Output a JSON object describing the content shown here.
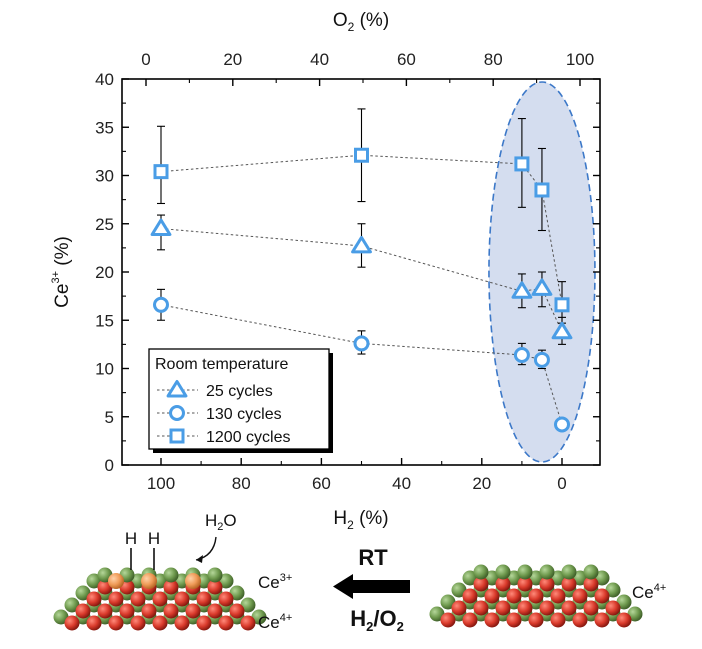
{
  "chart_data": {
    "type": "scatter",
    "x_bottom": {
      "label": "H",
      "label_sub": "2",
      "label_unit": " (%)",
      "range": [
        0,
        100
      ],
      "reversed": true,
      "ticks": [
        100,
        80,
        60,
        40,
        20,
        0
      ],
      "tick_labels": [
        "100",
        "80",
        "60",
        "40",
        "20",
        "0"
      ]
    },
    "x_top": {
      "label": "O",
      "label_sub": "2",
      "label_unit": " (%)",
      "range": [
        0,
        100
      ],
      "ticks": [
        0,
        20,
        40,
        60,
        80,
        100
      ],
      "tick_labels": [
        "0",
        "20",
        "40",
        "60",
        "80",
        "100"
      ]
    },
    "y": {
      "label": "Ce",
      "label_sup": "3+",
      "label_unit": " (%)",
      "range": [
        0,
        40
      ],
      "ticks": [
        0,
        5,
        10,
        15,
        20,
        25,
        30,
        35,
        40
      ],
      "tick_labels": [
        "0",
        "5",
        "10",
        "15",
        "20",
        "25",
        "30",
        "35",
        "40"
      ]
    },
    "legend": {
      "title": "Room temperature",
      "placement": "bottom-left"
    },
    "series": [
      {
        "name": "25 cycles",
        "marker": "triangle",
        "color": "#4a9de6",
        "points": [
          {
            "x": 100,
            "y": 24.5,
            "err_low": 22.3,
            "err_high": 25.9
          },
          {
            "x": 50,
            "y": 22.7,
            "err_low": 20.5,
            "err_high": 25.0
          },
          {
            "x": 10,
            "y": 18.0,
            "err_low": 16.3,
            "err_high": 19.8
          },
          {
            "x": 5,
            "y": 18.3,
            "err_low": 16.4,
            "err_high": 20.0
          },
          {
            "x": 0,
            "y": 13.8,
            "err_low": 12.5,
            "err_high": 15.3
          }
        ]
      },
      {
        "name": "130 cycles",
        "marker": "circle",
        "color": "#4a9de6",
        "points": [
          {
            "x": 100,
            "y": 16.6,
            "err_low": 15.0,
            "err_high": 18.2
          },
          {
            "x": 50,
            "y": 12.6,
            "err_low": 11.5,
            "err_high": 13.9
          },
          {
            "x": 10,
            "y": 11.4,
            "err_low": 10.4,
            "err_high": 12.6
          },
          {
            "x": 5,
            "y": 10.9,
            "err_low": 10.0,
            "err_high": 11.9
          },
          {
            "x": 0,
            "y": 4.2,
            "err_low": 3.9,
            "err_high": 4.5
          }
        ]
      },
      {
        "name": "1200 cycles",
        "marker": "square",
        "color": "#4a9de6",
        "points": [
          {
            "x": 100,
            "y": 30.4,
            "err_low": 27.1,
            "err_high": 35.1
          },
          {
            "x": 50,
            "y": 32.1,
            "err_low": 27.3,
            "err_high": 36.9
          },
          {
            "x": 10,
            "y": 31.2,
            "err_low": 26.7,
            "err_high": 35.9
          },
          {
            "x": 5,
            "y": 28.5,
            "err_low": 24.3,
            "err_high": 32.8
          },
          {
            "x": 0,
            "y": 16.6,
            "err_low": 14.7,
            "err_high": 19.0
          }
        ]
      }
    ],
    "highlight": {
      "shape": "ellipse",
      "fill": "#c5d1ea",
      "stroke": "#3c78c8",
      "covers_x": [
        0,
        10
      ]
    }
  },
  "schematic": {
    "left": {
      "adsorbate_H1": "H",
      "adsorbate_H2": "H",
      "water_main": "H",
      "water_sub": "2",
      "water_end": "O",
      "upper_label_main": "Ce",
      "upper_label_sup": "3+",
      "lower_label_main": "Ce",
      "lower_label_sup": "4+"
    },
    "arrow": {
      "top_text": "RT",
      "bottom_main": "H",
      "bottom_sub1": "2",
      "bottom_mid": "/O",
      "bottom_sub2": "2"
    },
    "right": {
      "label_main": "Ce",
      "label_sup": "4+"
    },
    "colors": {
      "oxygen": "#d93a2b",
      "cerium": "#6f9a4e",
      "reduced": "#ef9b58"
    }
  }
}
